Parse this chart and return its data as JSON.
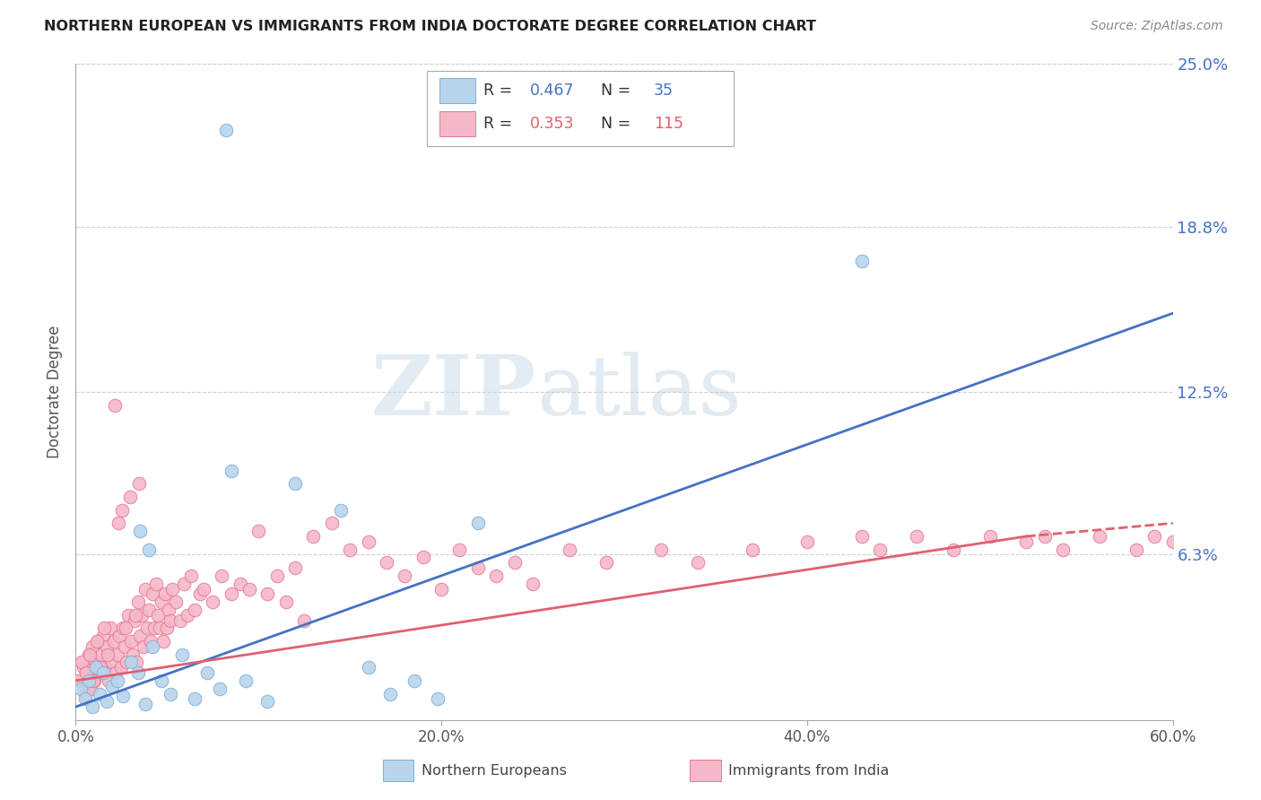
{
  "title": "NORTHERN EUROPEAN VS IMMIGRANTS FROM INDIA DOCTORATE DEGREE CORRELATION CHART",
  "source": "Source: ZipAtlas.com",
  "ylabel": "Doctorate Degree",
  "xlim": [
    0.0,
    60.0
  ],
  "ylim": [
    0.0,
    25.0
  ],
  "xtick_vals": [
    0.0,
    20.0,
    40.0,
    60.0
  ],
  "xtick_labels": [
    "0.0%",
    "20.0%",
    "40.0%",
    "60.0%"
  ],
  "ytick_vals": [
    6.3,
    12.5,
    18.8,
    25.0
  ],
  "ytick_labels": [
    "6.3%",
    "12.5%",
    "18.8%",
    "25.0%"
  ],
  "blue_R": 0.467,
  "blue_N": 35,
  "pink_R": 0.353,
  "pink_N": 115,
  "blue_color": "#b8d4ec",
  "blue_edge": "#7bafd4",
  "pink_color": "#f5b8c8",
  "pink_edge": "#e87898",
  "blue_line_color": "#4472c4",
  "pink_line_color": "#e06070",
  "blue_line_x0": 0.0,
  "blue_line_y0": 0.5,
  "blue_line_x1": 60.0,
  "blue_line_y1": 15.5,
  "pink_line_x0": 0.0,
  "pink_line_y0": 1.5,
  "pink_line_x1_solid": 52.0,
  "pink_line_y1_solid": 7.0,
  "pink_line_x1_dash": 60.0,
  "pink_line_y1_dash": 7.5,
  "blue_scatter_x": [
    0.3,
    0.5,
    0.7,
    0.9,
    1.1,
    1.3,
    1.5,
    1.7,
    2.0,
    2.3,
    2.6,
    3.0,
    3.4,
    3.8,
    4.2,
    4.7,
    5.2,
    5.8,
    6.5,
    7.2,
    7.9,
    8.5,
    9.3,
    10.5,
    12.0,
    14.5,
    16.0,
    17.2,
    18.5,
    19.8,
    22.0,
    43.0,
    8.2,
    3.5,
    4.0
  ],
  "blue_scatter_y": [
    1.2,
    0.8,
    1.5,
    0.5,
    2.0,
    1.0,
    1.8,
    0.7,
    1.3,
    1.5,
    0.9,
    2.2,
    1.8,
    0.6,
    2.8,
    1.5,
    1.0,
    2.5,
    0.8,
    1.8,
    1.2,
    9.5,
    1.5,
    0.7,
    9.0,
    8.0,
    2.0,
    1.0,
    1.5,
    0.8,
    7.5,
    17.5,
    22.5,
    7.2,
    6.5
  ],
  "pink_scatter_x": [
    0.2,
    0.4,
    0.5,
    0.6,
    0.7,
    0.8,
    0.9,
    1.0,
    1.1,
    1.2,
    1.3,
    1.4,
    1.5,
    1.6,
    1.7,
    1.8,
    1.9,
    2.0,
    2.1,
    2.2,
    2.3,
    2.4,
    2.5,
    2.6,
    2.7,
    2.8,
    2.9,
    3.0,
    3.1,
    3.2,
    3.3,
    3.4,
    3.5,
    3.6,
    3.7,
    3.8,
    3.9,
    4.0,
    4.1,
    4.2,
    4.3,
    4.4,
    4.5,
    4.6,
    4.7,
    4.8,
    4.9,
    5.0,
    5.1,
    5.2,
    5.3,
    5.5,
    5.7,
    5.9,
    6.1,
    6.3,
    6.5,
    6.8,
    7.0,
    7.5,
    8.0,
    8.5,
    9.0,
    9.5,
    10.0,
    10.5,
    11.0,
    11.5,
    12.0,
    12.5,
    13.0,
    14.0,
    15.0,
    16.0,
    17.0,
    18.0,
    19.0,
    20.0,
    21.0,
    22.0,
    23.0,
    24.0,
    25.0,
    27.0,
    29.0,
    32.0,
    34.0,
    37.0,
    40.0,
    43.0,
    44.0,
    46.0,
    48.0,
    50.0,
    52.0,
    53.0,
    54.0,
    56.0,
    58.0,
    59.0,
    60.0,
    0.35,
    0.55,
    0.75,
    0.95,
    1.15,
    1.35,
    1.55,
    1.75,
    2.15,
    2.35,
    2.55,
    2.75,
    2.95,
    3.25,
    3.45
  ],
  "pink_scatter_y": [
    1.5,
    2.0,
    1.0,
    1.8,
    2.5,
    1.2,
    2.8,
    1.5,
    2.2,
    3.0,
    1.8,
    2.5,
    3.2,
    2.0,
    2.8,
    1.5,
    3.5,
    2.2,
    3.0,
    1.8,
    2.5,
    3.2,
    2.0,
    3.5,
    2.8,
    2.2,
    4.0,
    3.0,
    2.5,
    3.8,
    2.2,
    4.5,
    3.2,
    4.0,
    2.8,
    5.0,
    3.5,
    4.2,
    3.0,
    4.8,
    3.5,
    5.2,
    4.0,
    3.5,
    4.5,
    3.0,
    4.8,
    3.5,
    4.2,
    3.8,
    5.0,
    4.5,
    3.8,
    5.2,
    4.0,
    5.5,
    4.2,
    4.8,
    5.0,
    4.5,
    5.5,
    4.8,
    5.2,
    5.0,
    7.2,
    4.8,
    5.5,
    4.5,
    5.8,
    3.8,
    7.0,
    7.5,
    6.5,
    6.8,
    6.0,
    5.5,
    6.2,
    5.0,
    6.5,
    5.8,
    5.5,
    6.0,
    5.2,
    6.5,
    6.0,
    6.5,
    6.0,
    6.5,
    6.8,
    7.0,
    6.5,
    7.0,
    6.5,
    7.0,
    6.8,
    7.0,
    6.5,
    7.0,
    6.5,
    7.0,
    6.8,
    2.2,
    1.8,
    2.5,
    1.5,
    3.0,
    2.0,
    3.5,
    2.5,
    12.0,
    7.5,
    8.0,
    3.5,
    8.5,
    4.0,
    9.0
  ],
  "watermark_text": "ZIPatlas",
  "background_color": "#ffffff",
  "grid_color": "#d0d0d0",
  "legend_R_color": "#4472c4",
  "legend_pink_R_color": "#e06070"
}
